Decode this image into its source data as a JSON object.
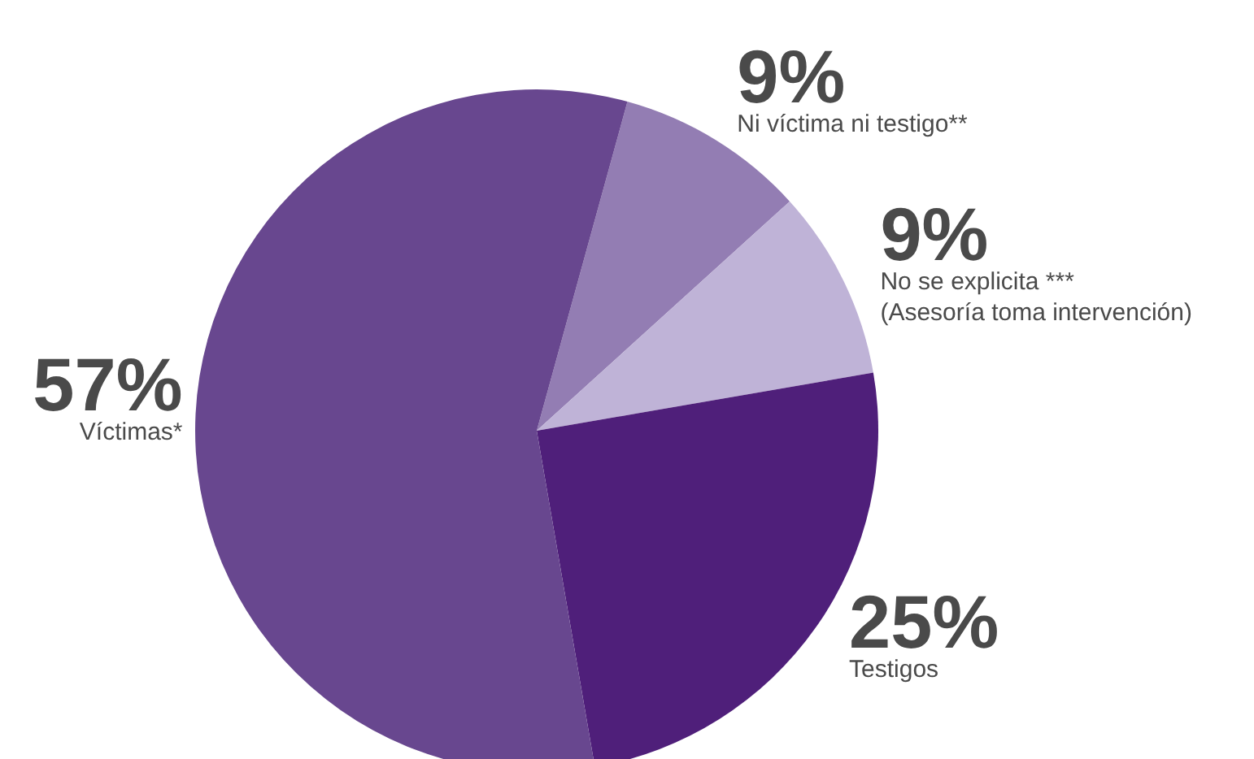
{
  "chart_data": {
    "type": "pie",
    "categories": [
      "Ni víctima ni testigo**",
      "No se explicita ***\n(Asesoría toma intervención)",
      "Testigos",
      "Víctimas*"
    ],
    "values": [
      9,
      9,
      25,
      57
    ],
    "value_labels": [
      "9%",
      "9%",
      "25%",
      "57%"
    ],
    "colors": [
      "#937db3",
      "#bfb3d7",
      "#4f1f7a",
      "#68478f"
    ]
  }
}
